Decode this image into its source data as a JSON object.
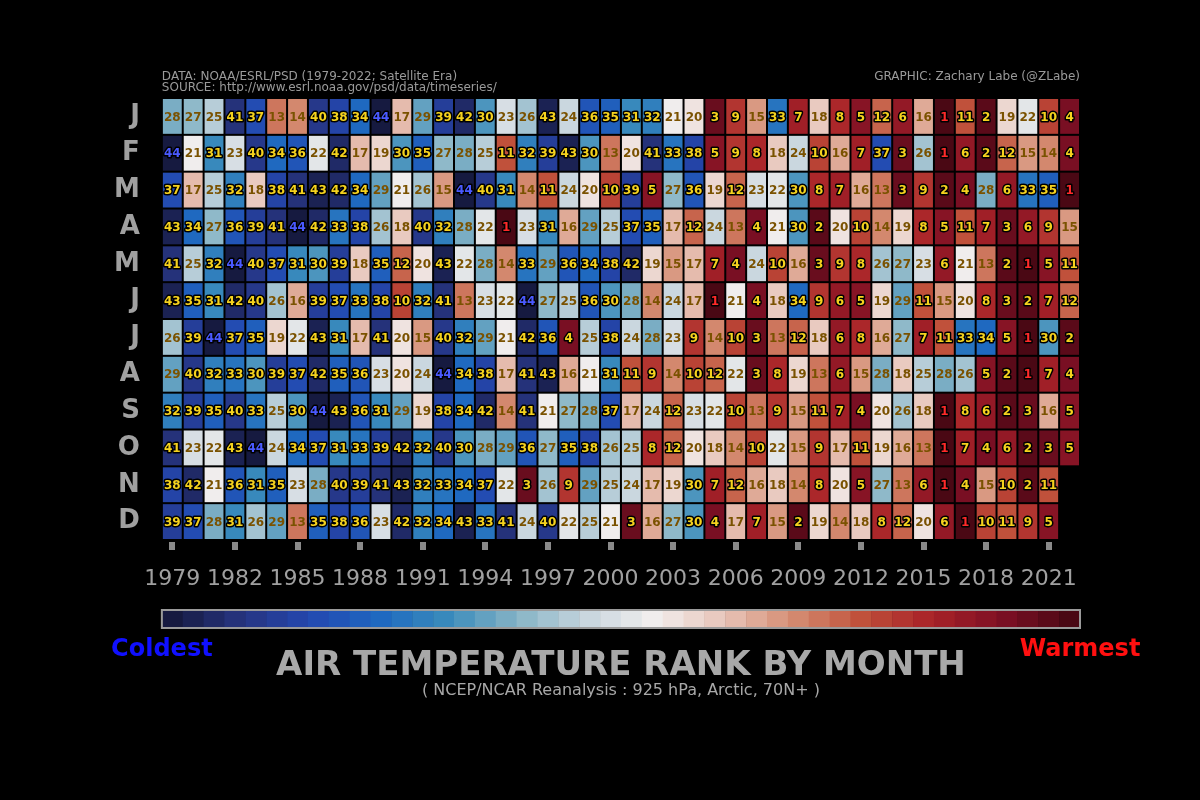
{
  "chart_data": {
    "type": "heatmap",
    "title": "AIR TEMPERATURE RANK BY MONTH",
    "subtitle": "( NCEP/NCAR Reanalysis : 925 hPa, Arctic, 70N+ )",
    "annotations": [
      "DATA: NOAA/ESRL/PSD (1979-2022; Satellite Era)",
      "SOURCE: http://www.esrl.noaa.gov/psd/data/timeseries/",
      "GRAPHIC: Zachary Labe (@ZLabe)"
    ],
    "categories": [
      "1979",
      null,
      null,
      "1982",
      null,
      null,
      "1985",
      null,
      null,
      "1988",
      null,
      null,
      "1991",
      null,
      null,
      "1994",
      null,
      null,
      "1997",
      null,
      null,
      "2000",
      null,
      null,
      "2003",
      null,
      null,
      "2006",
      null,
      null,
      "2009",
      null,
      null,
      "2012",
      null,
      null,
      "2015",
      null,
      null,
      "2018",
      null,
      null,
      "2021",
      null
    ],
    "y_categories": [
      "J",
      "F",
      "M",
      "A",
      "M",
      "J",
      "J",
      "A",
      "S",
      "O",
      "N",
      "D"
    ],
    "cells": [
      [
        28,
        27,
        25,
        41,
        37,
        13,
        14,
        40,
        38,
        34,
        44,
        17,
        29,
        39,
        42,
        30,
        23,
        26,
        43,
        24,
        36,
        35,
        31,
        32,
        21,
        20,
        3,
        9,
        15,
        33,
        7,
        18,
        8,
        5,
        12,
        6,
        16,
        1,
        11,
        2,
        19,
        22,
        10,
        4
      ],
      [
        44,
        21,
        31,
        23,
        40,
        34,
        36,
        22,
        42,
        17,
        19,
        30,
        35,
        27,
        28,
        25,
        11,
        32,
        39,
        43,
        30,
        13,
        20,
        41,
        33,
        38,
        5,
        9,
        8,
        18,
        24,
        10,
        16,
        7,
        37,
        3,
        26,
        1,
        6,
        2,
        12,
        15,
        14,
        4
      ],
      [
        37,
        17,
        25,
        32,
        18,
        38,
        41,
        43,
        42,
        34,
        29,
        21,
        26,
        15,
        44,
        40,
        31,
        14,
        11,
        24,
        20,
        10,
        39,
        5,
        27,
        36,
        19,
        12,
        23,
        22,
        30,
        8,
        7,
        16,
        13,
        3,
        9,
        2,
        4,
        28,
        6,
        33,
        35,
        1
      ],
      [
        43,
        34,
        27,
        36,
        39,
        41,
        44,
        42,
        33,
        38,
        26,
        18,
        40,
        32,
        28,
        22,
        1,
        23,
        31,
        16,
        29,
        25,
        37,
        35,
        17,
        12,
        24,
        13,
        4,
        21,
        30,
        2,
        20,
        10,
        14,
        19,
        8,
        5,
        11,
        7,
        3,
        6,
        9,
        15
      ],
      [
        41,
        25,
        32,
        44,
        40,
        37,
        31,
        30,
        39,
        18,
        35,
        12,
        20,
        43,
        22,
        28,
        14,
        33,
        29,
        36,
        34,
        38,
        42,
        19,
        15,
        17,
        7,
        4,
        24,
        10,
        16,
        3,
        9,
        8,
        26,
        27,
        23,
        6,
        21,
        13,
        2,
        1,
        5,
        11
      ],
      [
        43,
        35,
        31,
        42,
        40,
        26,
        16,
        39,
        37,
        33,
        38,
        10,
        32,
        41,
        13,
        23,
        22,
        44,
        27,
        25,
        36,
        30,
        28,
        14,
        24,
        17,
        1,
        21,
        4,
        18,
        34,
        9,
        6,
        5,
        19,
        29,
        11,
        15,
        20,
        8,
        3,
        2,
        7,
        12
      ],
      [
        26,
        39,
        44,
        37,
        35,
        19,
        22,
        43,
        31,
        17,
        41,
        20,
        15,
        40,
        32,
        29,
        21,
        42,
        36,
        4,
        25,
        38,
        24,
        28,
        23,
        9,
        14,
        10,
        3,
        13,
        12,
        18,
        6,
        8,
        16,
        27,
        7,
        11,
        33,
        34,
        5,
        1,
        30,
        2
      ],
      [
        29,
        40,
        32,
        33,
        30,
        39,
        37,
        42,
        35,
        36,
        23,
        20,
        24,
        44,
        34,
        38,
        17,
        41,
        43,
        16,
        21,
        31,
        11,
        9,
        14,
        10,
        12,
        22,
        3,
        8,
        19,
        13,
        6,
        15,
        28,
        18,
        25,
        28,
        26,
        5,
        2,
        1,
        7,
        4
      ],
      [
        32,
        39,
        35,
        40,
        33,
        25,
        30,
        44,
        43,
        36,
        31,
        29,
        19,
        38,
        34,
        42,
        14,
        41,
        21,
        27,
        28,
        37,
        17,
        24,
        12,
        23,
        22,
        10,
        13,
        9,
        15,
        11,
        7,
        4,
        20,
        26,
        18,
        1,
        8,
        6,
        2,
        3,
        16,
        5
      ],
      [
        41,
        23,
        22,
        43,
        44,
        24,
        34,
        37,
        31,
        33,
        39,
        42,
        32,
        40,
        30,
        28,
        29,
        36,
        27,
        35,
        38,
        26,
        25,
        8,
        12,
        20,
        18,
        14,
        10,
        22,
        15,
        9,
        17,
        11,
        19,
        16,
        13,
        1,
        7,
        4,
        6,
        2,
        3,
        5
      ],
      [
        38,
        42,
        21,
        36,
        31,
        35,
        23,
        28,
        40,
        39,
        41,
        43,
        32,
        33,
        34,
        37,
        22,
        3,
        26,
        9,
        29,
        25,
        24,
        17,
        19,
        30,
        7,
        12,
        16,
        18,
        14,
        8,
        20,
        5,
        27,
        13,
        6,
        1,
        4,
        15,
        10,
        2,
        11,
        null
      ],
      [
        39,
        37,
        28,
        31,
        26,
        29,
        13,
        35,
        38,
        36,
        23,
        42,
        32,
        34,
        43,
        33,
        41,
        24,
        40,
        22,
        25,
        21,
        3,
        16,
        27,
        30,
        4,
        17,
        7,
        15,
        2,
        19,
        14,
        18,
        8,
        12,
        20,
        6,
        1,
        10,
        11,
        9,
        5,
        null
      ]
    ],
    "data_labels": true,
    "clim": [
      44,
      1
    ],
    "cticks": [
      {
        "value": 44,
        "label": "Coldest"
      },
      {
        "value": 1,
        "label": "Warmest"
      }
    ]
  }
}
